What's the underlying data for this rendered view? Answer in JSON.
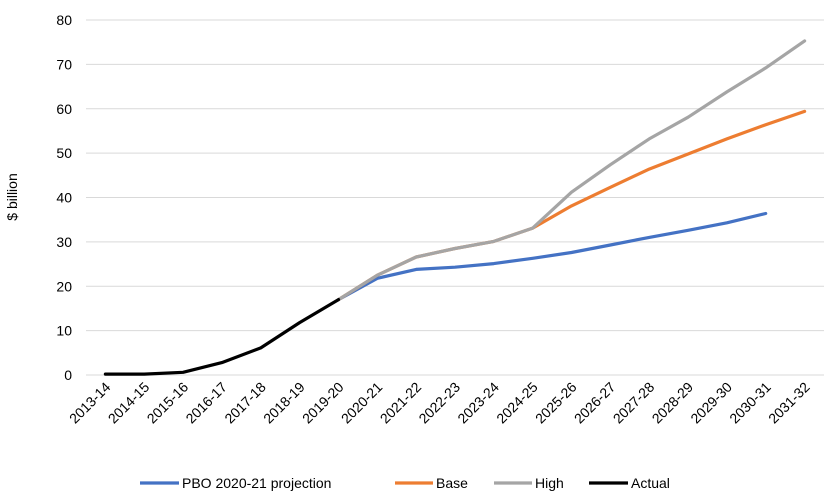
{
  "chart_data": {
    "type": "line",
    "title": "",
    "xlabel": "",
    "ylabel": "$ billion",
    "ylim": [
      0,
      80
    ],
    "yticks": [
      "0",
      "10",
      "20",
      "30",
      "40",
      "50",
      "60",
      "70",
      "80"
    ],
    "grid": "horizontal",
    "legend_position": "bottom",
    "categories": [
      "2013-14",
      "2014-15",
      "2015-16",
      "2016-17",
      "2017-18",
      "2018-19",
      "2019-20",
      "2020-21",
      "2021-22",
      "2022-23",
      "2023-24",
      "2024-25",
      "2025-26",
      "2026-27",
      "2027-28",
      "2028-29",
      "2029-30",
      "2030-31",
      "2031-32"
    ],
    "series": [
      {
        "name": "PBO 2020-21 projection",
        "color": "#4472C4",
        "values": [
          null,
          null,
          null,
          null,
          null,
          null,
          17.0,
          21.8,
          23.8,
          24.3,
          25.1,
          26.3,
          27.6,
          29.3,
          31.0,
          32.6,
          34.3,
          36.4,
          null
        ]
      },
      {
        "name": "Base",
        "color": "#ED7D31",
        "values": [
          null,
          null,
          null,
          null,
          null,
          null,
          17.0,
          22.5,
          26.6,
          28.5,
          30.1,
          33.1,
          38.1,
          42.3,
          46.4,
          49.8,
          53.2,
          56.4,
          59.4
        ]
      },
      {
        "name": "High",
        "color": "#A5A5A5",
        "values": [
          null,
          null,
          null,
          null,
          null,
          null,
          17.0,
          22.5,
          26.6,
          28.5,
          30.1,
          33.1,
          41.2,
          47.4,
          53.2,
          58.1,
          63.8,
          69.2,
          75.3
        ]
      },
      {
        "name": "Actual",
        "color": "#000000",
        "values": [
          0.2,
          0.2,
          0.6,
          2.8,
          6.1,
          11.8,
          17.0,
          null,
          null,
          null,
          null,
          null,
          null,
          null,
          null,
          null,
          null,
          null,
          null
        ]
      }
    ]
  }
}
